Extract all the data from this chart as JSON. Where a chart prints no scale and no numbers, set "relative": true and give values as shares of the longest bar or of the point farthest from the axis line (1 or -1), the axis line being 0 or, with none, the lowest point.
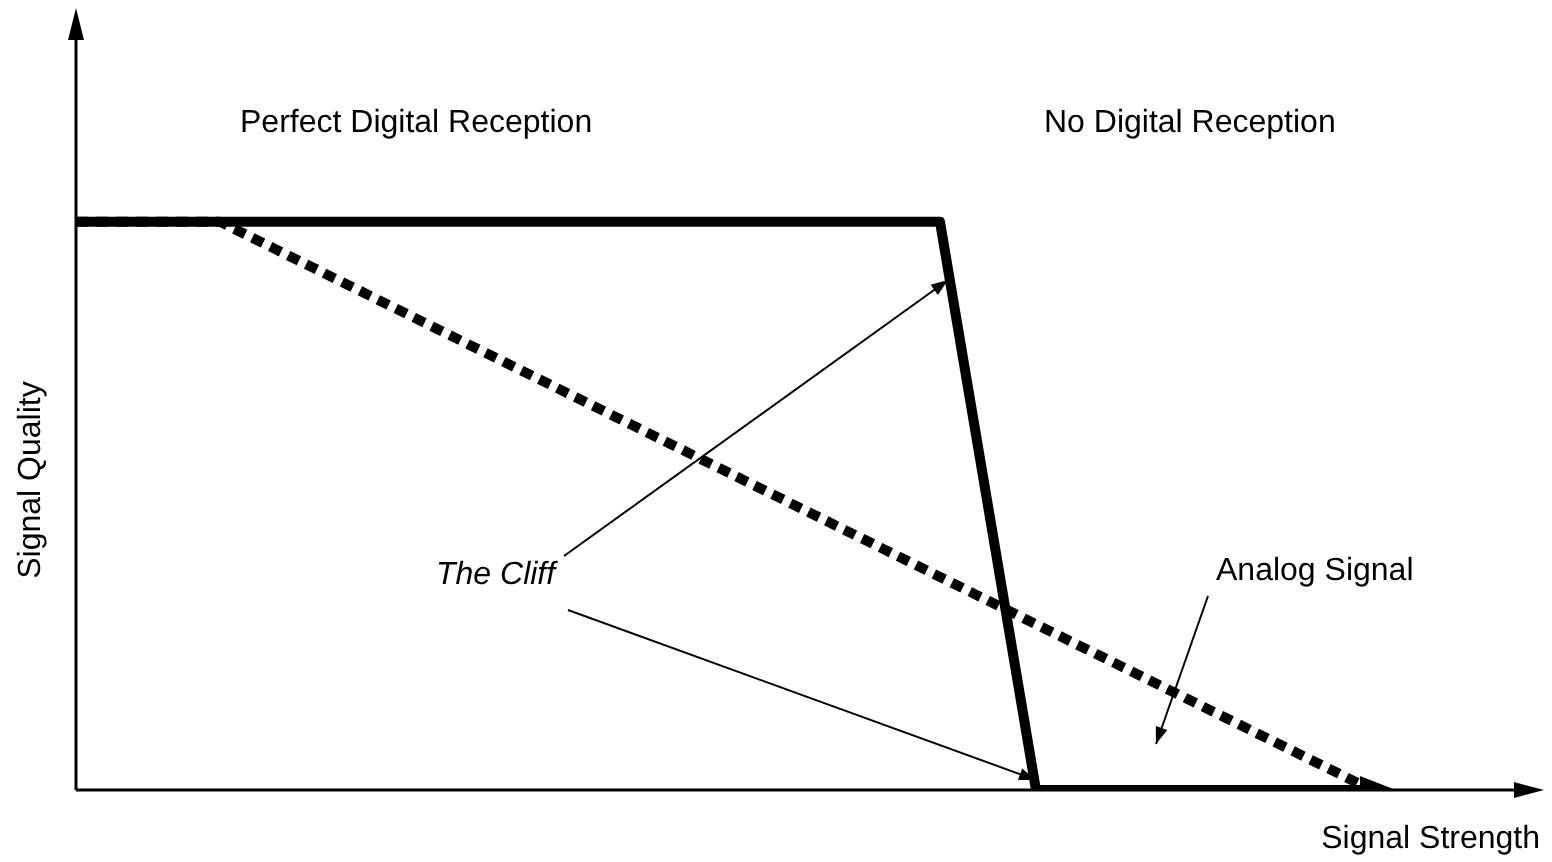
{
  "chart_data": {
    "type": "line",
    "relative": true,
    "xlabel": "Signal Strength",
    "ylabel": "Signal Quality",
    "categories": [
      null,
      null,
      null,
      null,
      null,
      null,
      null,
      null,
      null,
      null,
      null,
      null,
      null,
      null,
      null,
      null,
      null,
      null,
      null,
      null,
      null,
      null,
      null,
      null,
      null,
      null,
      null,
      null,
      null,
      null,
      null
    ],
    "series": [
      {
        "color": "#000000",
        "line_style": "solid",
        "values": [
          1,
          null,
          null,
          null,
          null,
          null,
          null,
          null,
          null,
          null,
          null,
          null,
          null,
          null,
          null,
          null,
          null,
          null,
          1,
          null,
          0,
          null,
          null,
          null,
          null,
          null,
          null,
          0,
          null,
          null,
          null
        ]
      },
      {
        "color": "#000000",
        "line_style": "dotted",
        "values": [
          1,
          null,
          null,
          1,
          null,
          null,
          null,
          null,
          null,
          null,
          null,
          null,
          null,
          null,
          null,
          null,
          null,
          null,
          null,
          null,
          null,
          null,
          null,
          null,
          null,
          null,
          null,
          0,
          null,
          null,
          null
        ]
      }
    ],
    "annotations": [
      "Perfect Digital Reception",
      "No Digital Reception",
      "The Cliff",
      "Analog Signal"
    ],
    "grid": false,
    "legend": false,
    "marker": "none"
  }
}
